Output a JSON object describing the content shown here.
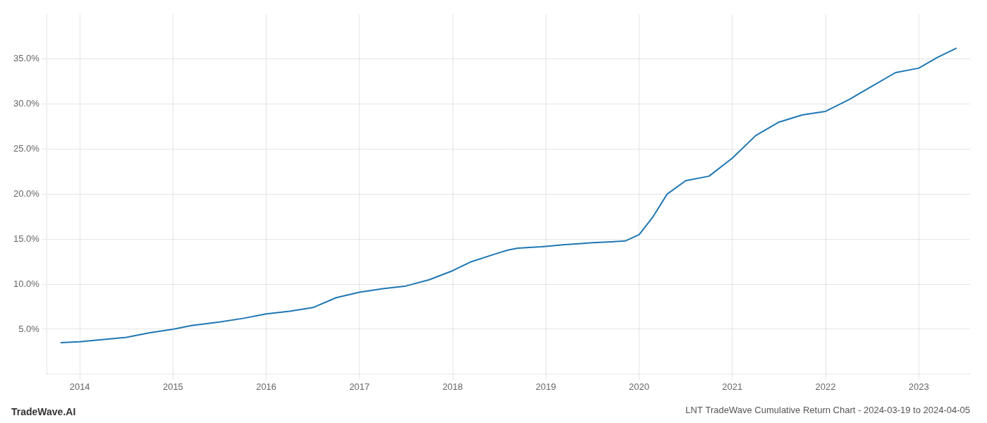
{
  "chart_data": {
    "type": "line",
    "title": "LNT TradeWave Cumulative Return Chart - 2024-03-19 to 2024-04-05",
    "annotations": [
      "TradeWave.AI"
    ],
    "color": "#1f77b4",
    "x": [
      2013.8,
      2014.0,
      2014.2,
      2014.5,
      2014.75,
      2015.0,
      2015.2,
      2015.5,
      2015.75,
      2016.0,
      2016.25,
      2016.5,
      2016.75,
      2017.0,
      2017.25,
      2017.5,
      2017.75,
      2018.0,
      2018.2,
      2018.5,
      2018.6,
      2018.7,
      2018.85,
      2018.95,
      2019.0,
      2019.1,
      2019.2,
      2019.35,
      2019.5,
      2019.7,
      2019.85,
      2020.0,
      2020.15,
      2020.3,
      2020.5,
      2020.75,
      2021.0,
      2021.25,
      2021.5,
      2021.75,
      2022.0,
      2022.25,
      2022.5,
      2022.75,
      2023.0,
      2023.2,
      2023.4
    ],
    "values": [
      3.5,
      3.6,
      3.8,
      4.1,
      4.6,
      5.0,
      5.4,
      5.8,
      6.2,
      6.7,
      7.0,
      7.4,
      8.5,
      9.1,
      9.5,
      9.8,
      10.5,
      11.5,
      12.5,
      13.5,
      13.8,
      14.0,
      14.1,
      14.15,
      14.2,
      14.3,
      14.4,
      14.5,
      14.6,
      14.7,
      14.8,
      15.5,
      17.5,
      20.0,
      21.5,
      22.0,
      24.0,
      26.5,
      28.0,
      28.8,
      29.2,
      30.5,
      32.0,
      33.5,
      34.0,
      35.2,
      36.2
    ],
    "xlim": [
      2013.65,
      2023.55
    ],
    "ylim": [
      0,
      40
    ],
    "xticks": [
      2014,
      2015,
      2016,
      2017,
      2018,
      2019,
      2020,
      2021,
      2022,
      2023
    ],
    "yticks": [
      {
        "value": 5.0,
        "label": "5.0%"
      },
      {
        "value": 10.0,
        "label": "10.0%"
      },
      {
        "value": 15.0,
        "label": "15.0%"
      },
      {
        "value": 20.0,
        "label": "20.0%"
      },
      {
        "value": 25.0,
        "label": "25.0%"
      },
      {
        "value": 30.0,
        "label": "30.0%"
      },
      {
        "value": 35.0,
        "label": "35.0%"
      }
    ],
    "grid": true
  }
}
